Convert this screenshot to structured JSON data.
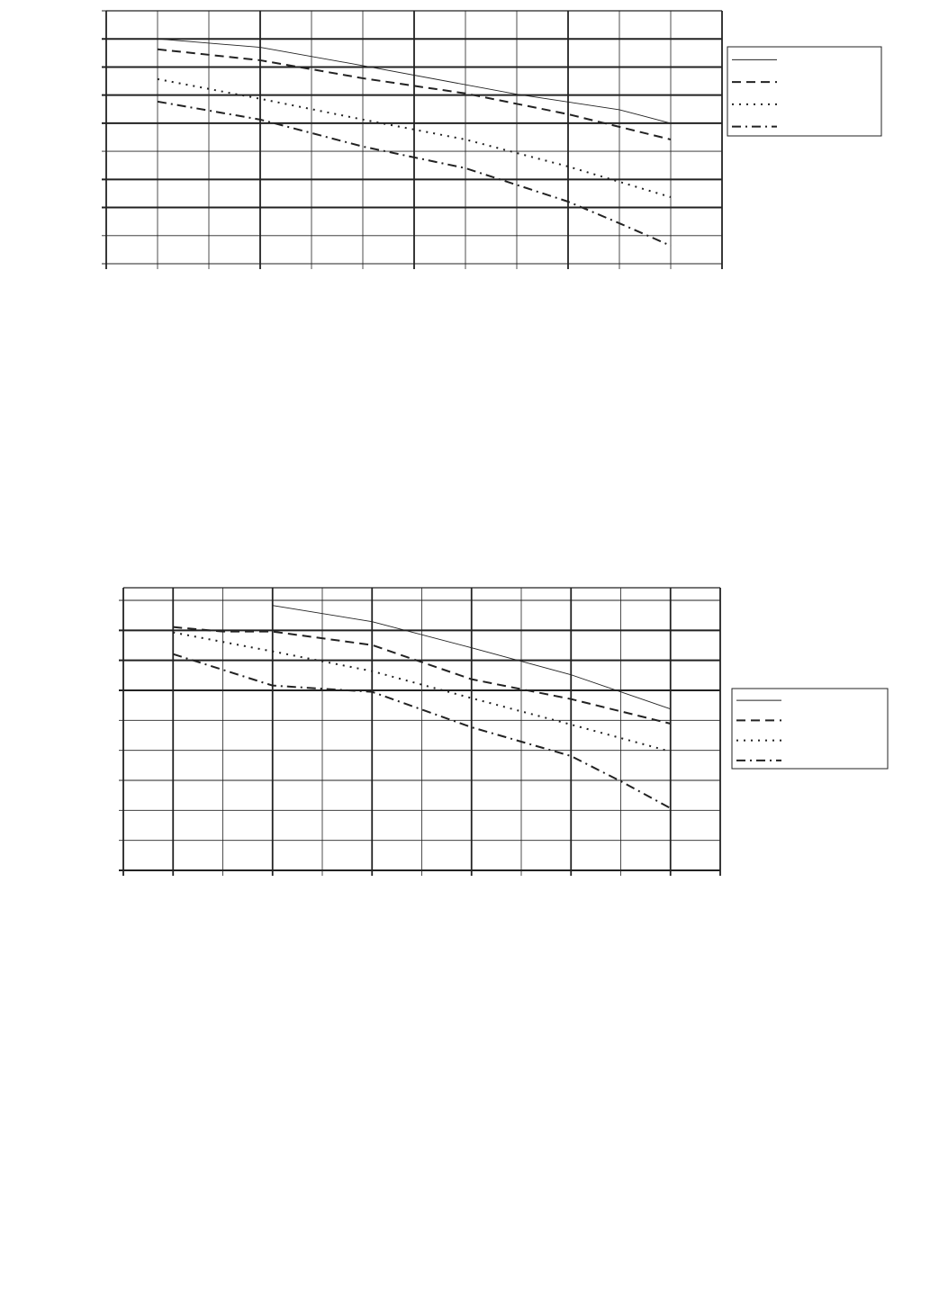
{
  "chart_data": [
    {
      "type": "line",
      "title": "",
      "xlabel": "",
      "ylabel": "",
      "xlim": [
        0,
        12
      ],
      "ylim": [
        0,
        9
      ],
      "grid": true,
      "legend": "right",
      "series": [
        {
          "style": "solid",
          "x": [
            1,
            3,
            5,
            8,
            10,
            11
          ],
          "y": [
            8.0,
            7.7,
            7.05,
            6.03,
            5.48,
            5.0
          ]
        },
        {
          "style": "dashed",
          "x": [
            1,
            3,
            5,
            7,
            9,
            11
          ],
          "y": [
            7.63,
            7.24,
            6.6,
            6.06,
            5.32,
            4.42
          ]
        },
        {
          "style": "dotted",
          "x": [
            1,
            3,
            5,
            7,
            9,
            11
          ],
          "y": [
            6.57,
            5.87,
            5.13,
            4.42,
            3.46,
            2.37
          ]
        },
        {
          "style": "dash-dot",
          "x": [
            1,
            3,
            5,
            7,
            9,
            10,
            11
          ],
          "y": [
            5.77,
            5.13,
            4.17,
            3.4,
            2.21,
            1.44,
            0.64
          ]
        }
      ]
    },
    {
      "type": "line",
      "title": "",
      "xlabel": "",
      "ylabel": "",
      "xlim": [
        0,
        12
      ],
      "ylim": [
        0,
        9.4
      ],
      "grid": true,
      "legend": "right",
      "series": [
        {
          "style": "solid",
          "x": [
            3,
            5,
            7,
            9,
            11
          ],
          "y": [
            8.83,
            8.29,
            7.42,
            6.52,
            5.38
          ]
        },
        {
          "style": "dashed",
          "x": [
            1,
            2,
            3,
            5,
            7,
            9,
            11
          ],
          "y": [
            8.11,
            7.96,
            7.96,
            7.51,
            6.37,
            5.71,
            4.89
          ]
        },
        {
          "style": "dotted",
          "x": [
            1,
            3,
            5,
            7,
            9,
            11
          ],
          "y": [
            7.93,
            7.3,
            6.64,
            5.74,
            4.86,
            3.96
          ]
        },
        {
          "style": "dash-dot",
          "x": [
            1,
            3,
            5,
            7,
            9,
            10,
            11
          ],
          "y": [
            7.21,
            6.16,
            5.95,
            4.77,
            3.81,
            2.97,
            2.07
          ]
        }
      ]
    }
  ]
}
